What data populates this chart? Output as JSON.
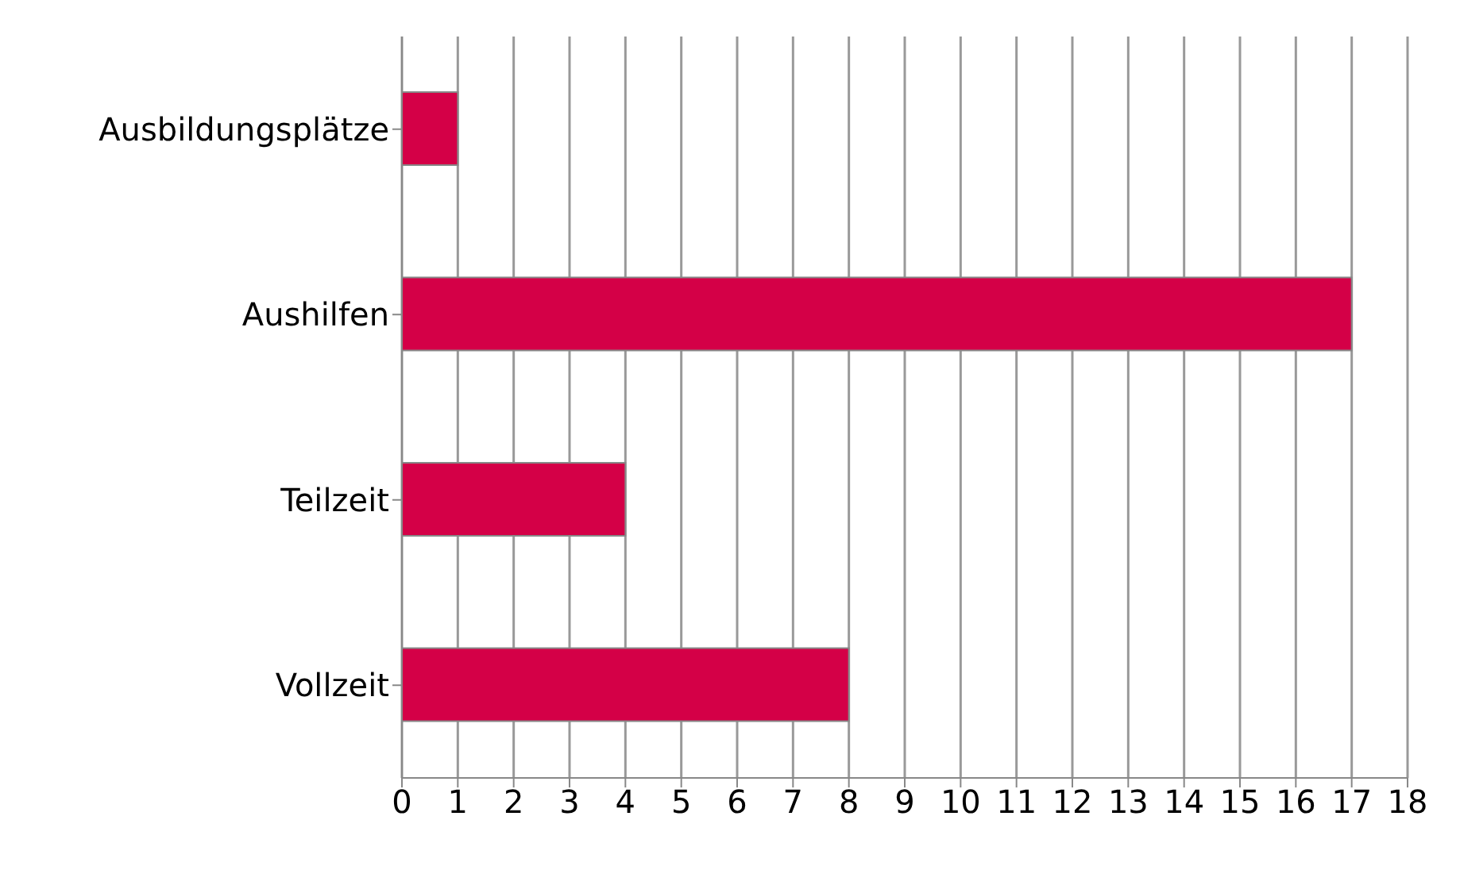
{
  "chart_data": {
    "type": "bar",
    "orientation": "horizontal",
    "categories": [
      "Ausbildungsplätze",
      "Aushilfen",
      "Teilzeit",
      "Vollzeit"
    ],
    "values": [
      1,
      17,
      4,
      8
    ],
    "color": "#d40047",
    "xlim": [
      0,
      18
    ],
    "xticks": [
      0,
      1,
      2,
      3,
      4,
      5,
      6,
      7,
      8,
      9,
      10,
      11,
      12,
      13,
      14,
      15,
      16,
      17,
      18
    ],
    "grid": "x"
  }
}
